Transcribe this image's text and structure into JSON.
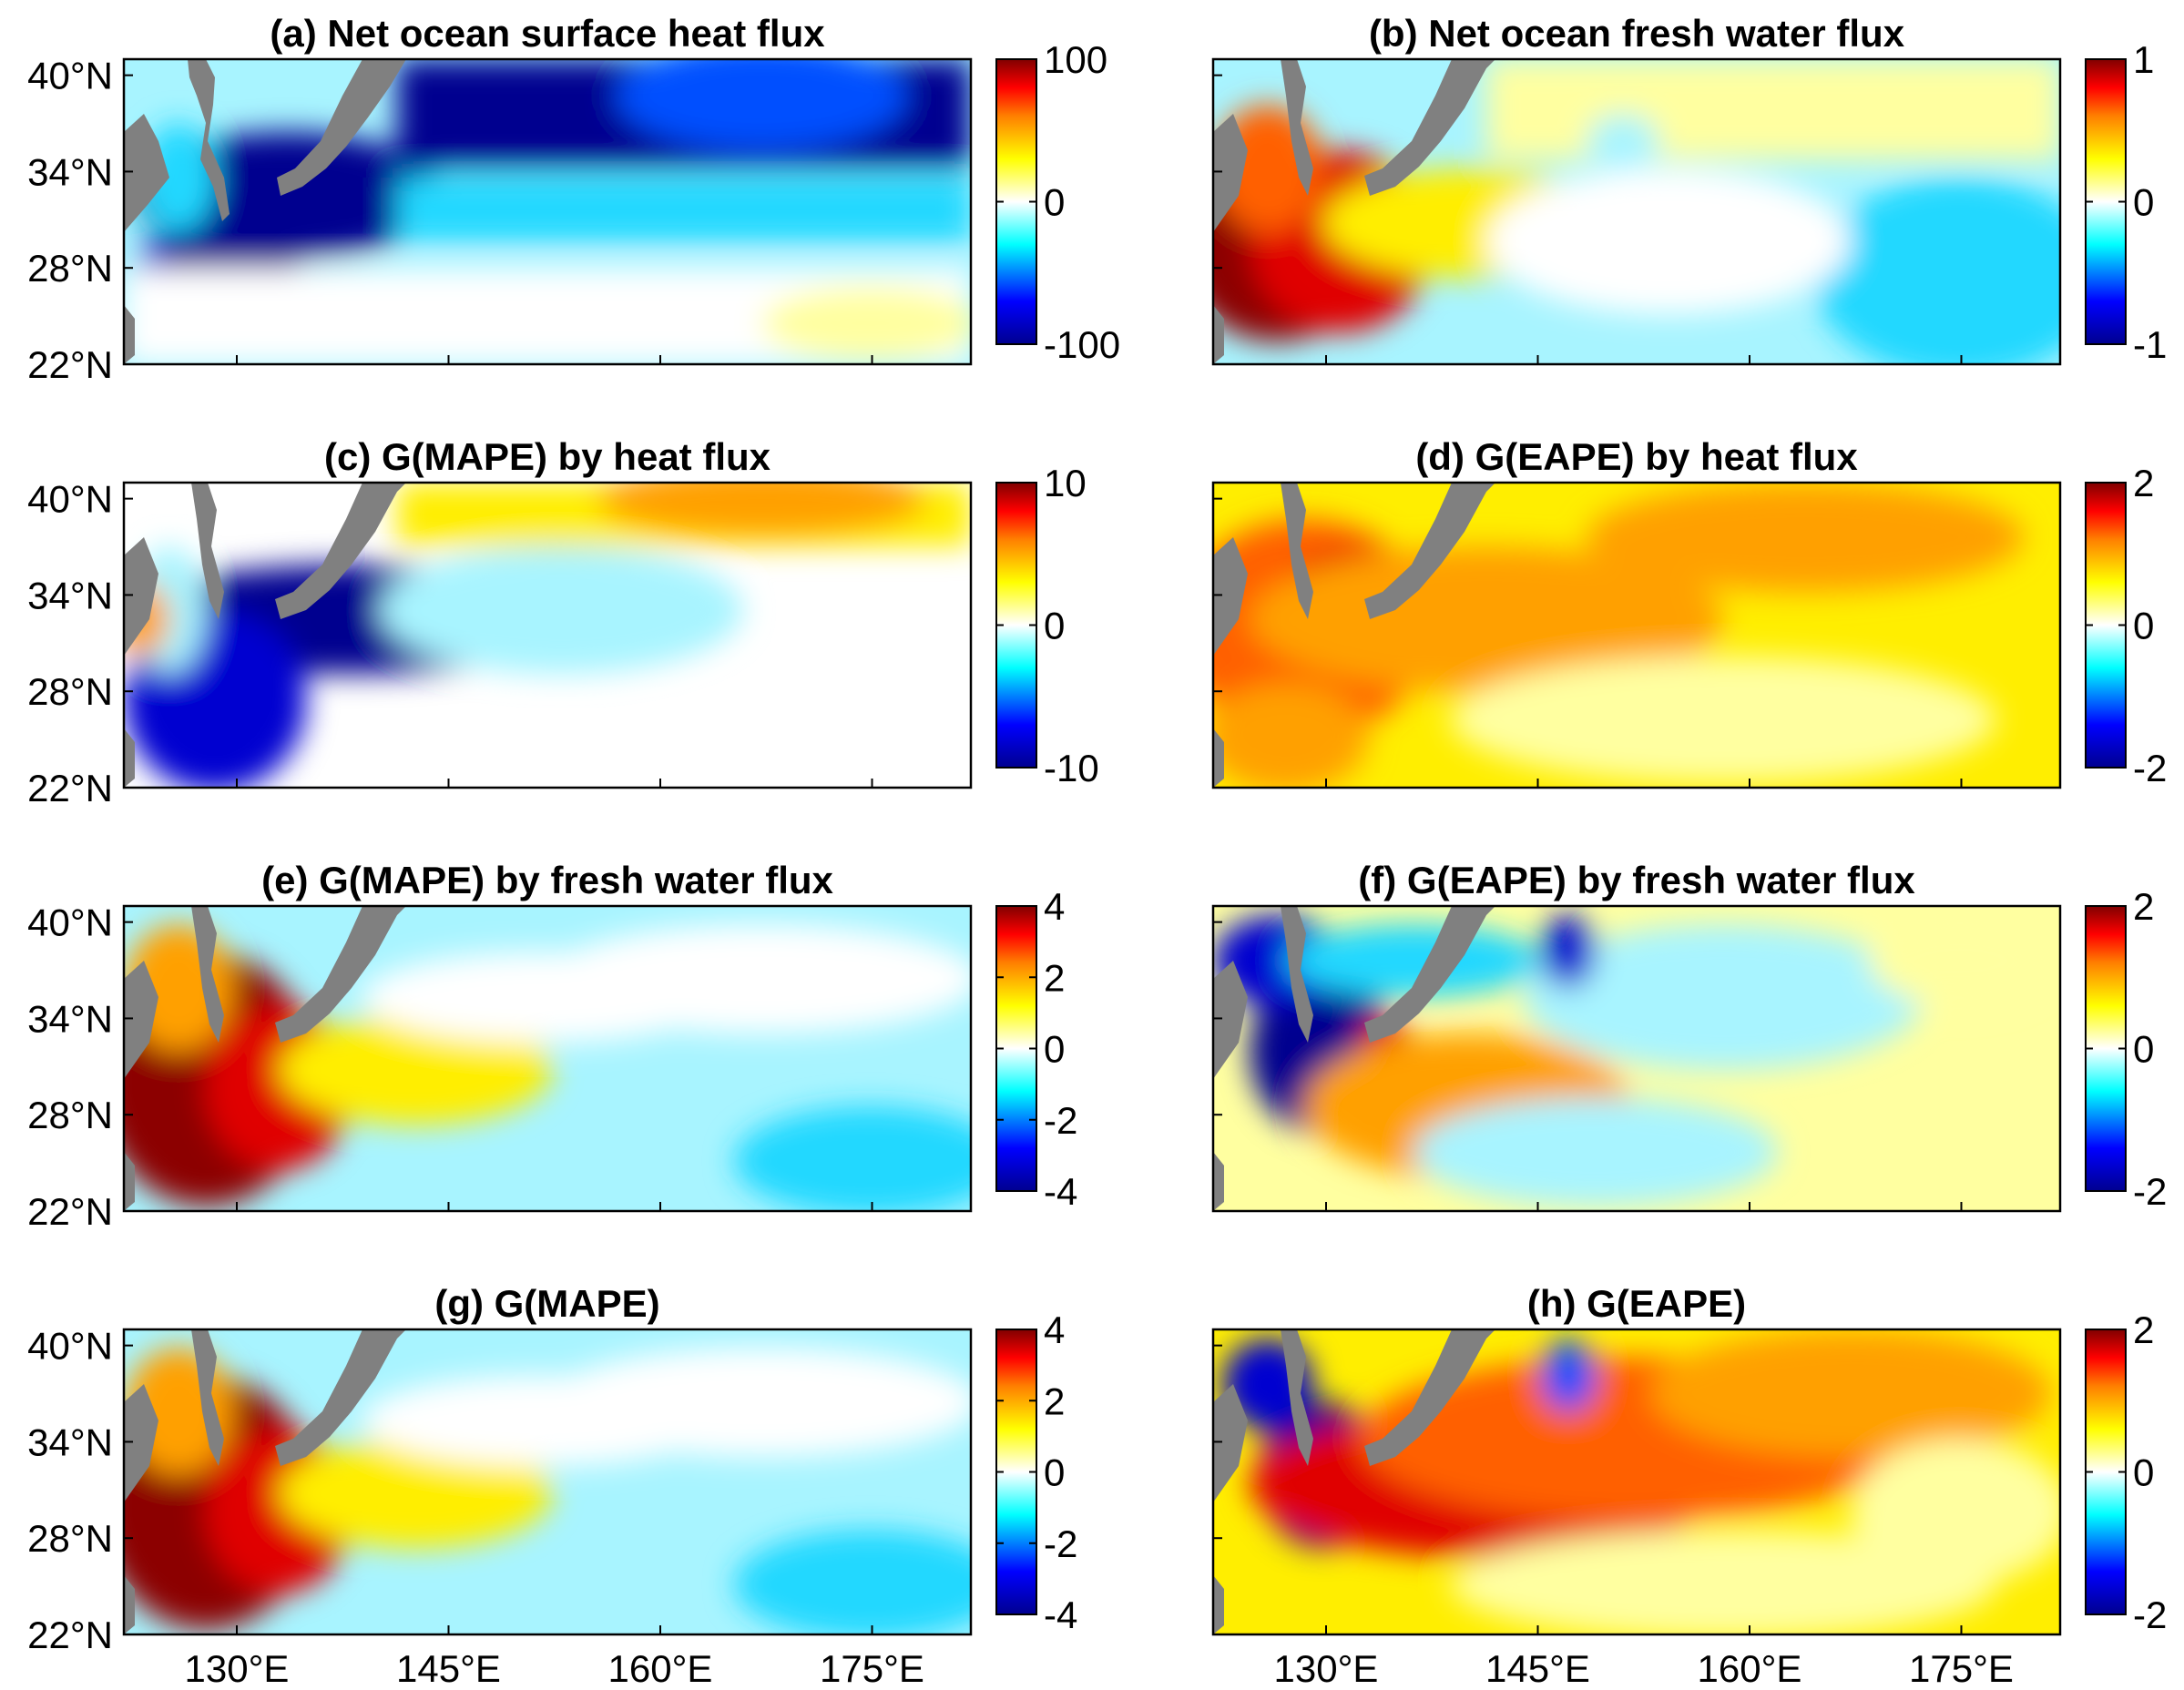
{
  "chart_data": {
    "type": "heatmap",
    "layout": "4 rows x 2 columns of map panels, each with its own colorbar",
    "x_axis": {
      "range": [
        122,
        182
      ],
      "ticks": [
        130,
        145,
        160,
        175
      ],
      "tick_labels": [
        "130°E",
        "145°E",
        "160°E",
        "175°E"
      ]
    },
    "y_axis": {
      "range": [
        22,
        41
      ],
      "ticks": [
        40,
        34,
        28,
        22
      ],
      "tick_labels": [
        "40°N",
        "34°N",
        "28°N",
        "22°N"
      ]
    },
    "colors": {
      "land": "#808080",
      "frame": "#000000",
      "colormap": [
        "#00008f",
        "#0000ff",
        "#00ffff",
        "#ffffff",
        "#ffff00",
        "#ff8000",
        "#ff0000",
        "#800000"
      ]
    },
    "panels": [
      {
        "id": "a",
        "title": "(a) Net ocean surface heat flux",
        "clim": [
          -100,
          100
        ],
        "colorbar_labels": [
          "100",
          "0",
          "-100"
        ]
      },
      {
        "id": "b",
        "title": "(b) Net ocean fresh water flux",
        "clim": [
          -1,
          1
        ],
        "colorbar_labels": [
          "1",
          "0",
          "-1"
        ]
      },
      {
        "id": "c",
        "title": "(c) G(MAPE) by heat flux",
        "clim": [
          -10,
          10
        ],
        "colorbar_labels": [
          "10",
          "0",
          "-10"
        ]
      },
      {
        "id": "d",
        "title": "(d) G(EAPE) by heat flux",
        "clim": [
          -2,
          2
        ],
        "colorbar_labels": [
          "2",
          "0",
          "-2"
        ]
      },
      {
        "id": "e",
        "title": "(e) G(MAPE) by fresh water flux",
        "clim": [
          -4,
          4
        ],
        "colorbar_labels": [
          "4",
          "2",
          "0",
          "-2",
          "-4"
        ]
      },
      {
        "id": "f",
        "title": "(f) G(EAPE) by fresh water flux",
        "clim": [
          -2,
          2
        ],
        "colorbar_labels": [
          "2",
          "0",
          "-2"
        ]
      },
      {
        "id": "g",
        "title": "(g) G(MAPE)",
        "clim": [
          -4,
          4
        ],
        "colorbar_labels": [
          "4",
          "2",
          "0",
          "-2",
          "-4"
        ]
      },
      {
        "id": "h",
        "title": "(h) G(EAPE)",
        "clim": [
          -2,
          2
        ],
        "colorbar_labels": [
          "2",
          "0",
          "-2"
        ]
      }
    ]
  }
}
